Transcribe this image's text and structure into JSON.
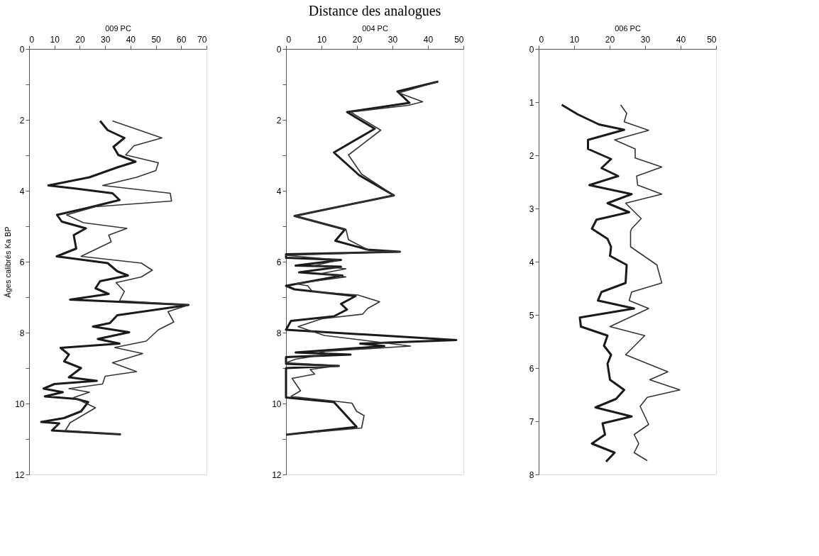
{
  "chart_data": [
    {
      "type": "line",
      "xlabel": "009 PC",
      "ylabel": "Âges calibrés Ka BP",
      "xlim": [
        0,
        70
      ],
      "xticks": [
        0,
        10,
        20,
        30,
        40,
        50,
        60,
        70
      ],
      "ylim": [
        12,
        0
      ],
      "yticks": [
        0,
        {
          "value": 1,
          "label": null
        },
        2,
        {
          "value": 3,
          "label": null
        },
        4,
        {
          "value": 5,
          "label": null
        },
        6,
        {
          "value": 7,
          "label": null
        },
        8,
        {
          "value": 9,
          "label": null
        },
        10,
        {
          "value": 11,
          "label": null
        },
        12
      ],
      "grid": false,
      "series": [
        {
          "color": "#1a1a1a",
          "x": [
            28,
            31,
            37.6,
            33.3,
            35.2,
            42,
            34.8,
            23.8,
            7.6,
            18.6,
            32.9,
            35.7,
            23.3,
            11,
            12.9,
            22.4,
            17.6,
            18.6,
            10.9,
            31,
            34.8,
            39,
            28,
            26.2,
            31.4,
            16.2,
            62.9,
            34.8,
            31.9,
            25.2,
            39.5,
            27.1,
            35.7,
            12.4,
            15.7,
            13.8,
            20.5,
            15.7,
            26.7,
            10,
            5.7,
            13.3,
            6.2,
            18.6,
            23.3,
            20.5,
            13.8,
            4.8,
            11.9,
            9,
            36.2
          ],
          "values": [
            2.03,
            2.29,
            2.51,
            2.76,
            2.99,
            3.18,
            3.34,
            3.62,
            3.85,
            3.94,
            4.07,
            4.26,
            4.48,
            4.68,
            4.87,
            5.06,
            5.25,
            5.63,
            5.85,
            6.04,
            6.27,
            6.39,
            6.55,
            6.75,
            6.91,
            7.07,
            7.22,
            7.51,
            7.73,
            7.83,
            7.99,
            8.18,
            8.31,
            8.43,
            8.62,
            8.81,
            9.0,
            9.26,
            9.36,
            9.45,
            9.58,
            9.68,
            9.8,
            9.87,
            9.96,
            10.22,
            10.41,
            10.52,
            10.56,
            10.76,
            10.87
          ]
        },
        {
          "color": "#333333",
          "x": [
            32.9,
            52.4,
            41.4,
            38.1,
            51,
            50,
            42.4,
            29,
            55.7,
            56.2,
            26.2,
            14.8,
            21.4,
            38.6,
            31.4,
            32.4,
            20.5,
            44.3,
            48.6,
            44.3,
            34.3,
            37.6,
            35.7,
            62.9,
            54.8,
            57.1,
            51,
            46.2,
            33.8,
            44.8,
            32.9,
            42.4,
            30,
            29,
            15.7,
            23.8,
            17.6,
            26.2,
            22.4,
            16.2,
            14.3,
            36.2
          ],
          "values": [
            2.03,
            2.51,
            2.73,
            2.99,
            3.21,
            3.43,
            3.62,
            3.85,
            4.07,
            4.29,
            4.45,
            4.68,
            4.9,
            5.06,
            5.25,
            5.44,
            5.85,
            6.04,
            6.24,
            6.43,
            6.59,
            6.84,
            7.1,
            7.22,
            7.41,
            7.7,
            7.92,
            8.24,
            8.42,
            8.59,
            8.85,
            9.1,
            9.23,
            9.45,
            9.58,
            9.68,
            9.83,
            10.12,
            10.28,
            10.54,
            10.76,
            10.87
          ]
        }
      ]
    },
    {
      "type": "line",
      "title": "Distance des analogues",
      "xlabel": "004 PC",
      "xlim": [
        0,
        50
      ],
      "xticks": [
        0,
        10,
        20,
        30,
        40,
        50
      ],
      "ylim": [
        12,
        0
      ],
      "yticks": [
        0,
        {
          "value": 1,
          "label": null
        },
        2,
        {
          "value": 3,
          "label": null
        },
        4,
        {
          "value": 5,
          "label": null
        },
        6,
        {
          "value": 7,
          "label": null
        },
        8,
        {
          "value": 9,
          "label": null
        },
        10,
        {
          "value": 11,
          "label": null
        },
        12
      ],
      "grid": false,
      "series": [
        {
          "color": "#1a1a1a",
          "x": [
            42.9,
            31.4,
            34.8,
            17.2,
            25,
            13.5,
            20.6,
            30.4,
            2.4,
            16.6,
            13.9,
            23,
            32.1,
            0,
            0,
            15.5,
            2.7,
            15.5,
            3.7,
            15.9,
            0,
            2.4,
            19.6,
            15.5,
            17.2,
            13.5,
            1.4,
            0,
            48,
            20.9,
            27.7,
            2.7,
            18.2,
            0,
            0,
            14.9,
            0,
            0,
            13.5,
            19.9,
            0
          ],
          "values": [
            0.92,
            1.2,
            1.52,
            1.78,
            2.25,
            2.92,
            3.56,
            4.13,
            4.71,
            5.09,
            5.41,
            5.66,
            5.72,
            5.79,
            5.89,
            5.95,
            6.11,
            6.14,
            6.3,
            6.39,
            6.68,
            6.78,
            6.97,
            7.19,
            7.35,
            7.54,
            7.67,
            7.92,
            8.21,
            8.31,
            8.38,
            8.56,
            8.62,
            8.69,
            8.88,
            8.94,
            9.0,
            9.83,
            9.96,
            10.66,
            10.88
          ]
        },
        {
          "color": "#333333",
          "x": [
            42.9,
            31.8,
            38.5,
            34.5,
            18.2,
            26.7,
            17.6,
            21.3,
            30.4,
            2.4,
            16.9,
            17.6,
            23.6,
            32.1,
            0,
            14.9,
            8.1,
            16.9,
            10.1,
            16.9,
            2.7,
            6.1,
            7.4,
            20.3,
            26.4,
            23,
            21.6,
            10.1,
            3.4,
            10.8,
            35.1,
            9.5,
            12.2,
            2.7,
            0,
            14.9,
            6.8,
            8.1,
            1.7,
            4.1,
            1.4,
            13.5,
            18.6,
            19.9,
            22,
            21.3,
            0
          ],
          "values": [
            0.92,
            1.24,
            1.49,
            1.59,
            1.78,
            2.29,
            2.99,
            3.53,
            4.13,
            4.71,
            5.09,
            5.38,
            5.69,
            5.72,
            5.82,
            5.95,
            6.11,
            6.2,
            6.33,
            6.43,
            6.62,
            6.68,
            6.84,
            6.94,
            7.13,
            7.32,
            7.48,
            7.61,
            7.83,
            8.08,
            8.38,
            8.54,
            8.6,
            8.75,
            8.85,
            8.93,
            9.04,
            9.17,
            9.29,
            9.64,
            9.8,
            9.93,
            9.99,
            10.22,
            10.34,
            10.69,
            10.88
          ]
        }
      ]
    },
    {
      "type": "line",
      "xlabel": "006 PC",
      "xlim": [
        0,
        50
      ],
      "xticks": [
        0,
        10,
        20,
        30,
        40,
        50
      ],
      "ylim": [
        8,
        0
      ],
      "yticks": [
        0,
        1,
        2,
        3,
        4,
        5,
        6,
        7,
        8
      ],
      "grid": false,
      "series": [
        {
          "color": "#1a1a1a",
          "x": [
            6.5,
            11,
            17,
            24.1,
            13.9,
            13.9,
            20.4,
            17.7,
            22.4,
            14.3,
            26.2,
            19.4,
            25.5,
            16.3,
            15,
            19.4,
            20.4,
            20.1,
            24.8,
            24.5,
            17.7,
            16.7,
            26.9,
            11.6,
            11.9,
            19.4,
            18.4,
            20.4,
            19.4,
            20.1,
            24.1,
            21.8,
            16,
            26.2,
            18,
            18.7,
            15,
            21.4,
            19
          ],
          "values": [
            1.05,
            1.23,
            1.42,
            1.52,
            1.71,
            1.88,
            2.07,
            2.24,
            2.39,
            2.56,
            2.73,
            2.9,
            3.07,
            3.21,
            3.38,
            3.57,
            3.72,
            3.89,
            4.06,
            4.4,
            4.57,
            4.73,
            4.88,
            5.05,
            5.22,
            5.39,
            5.58,
            5.75,
            5.92,
            6.22,
            6.41,
            6.58,
            6.74,
            6.91,
            7.04,
            7.25,
            7.42,
            7.59,
            7.76
          ]
        },
        {
          "color": "#333333",
          "x": [
            23.1,
            24.8,
            24.1,
            31,
            21.4,
            27.2,
            27.2,
            34.7,
            27.6,
            27.9,
            34.7,
            24.5,
            28.9,
            26.2,
            25.9,
            25.9,
            33.3,
            34.7,
            26.2,
            25.5,
            31,
            20.1,
            29.9,
            24.5,
            36.4,
            31.3,
            39.8,
            30.6,
            28.6,
            31,
            26.9,
            28.2,
            26.9,
            30.6
          ],
          "values": [
            1.05,
            1.21,
            1.37,
            1.53,
            1.71,
            1.88,
            2.05,
            2.22,
            2.39,
            2.56,
            2.73,
            2.9,
            3.19,
            3.38,
            3.43,
            3.72,
            4.06,
            4.4,
            4.57,
            4.73,
            4.88,
            5.22,
            5.39,
            5.75,
            6.07,
            6.22,
            6.41,
            6.55,
            6.72,
            7.06,
            7.25,
            7.42,
            7.59,
            7.74
          ]
        }
      ]
    }
  ]
}
